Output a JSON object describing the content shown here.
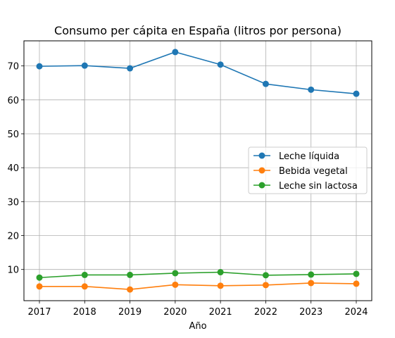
{
  "chart_data": {
    "type": "line",
    "title": "Consumo per cápita en España (litros por persona)",
    "xlabel": "Año",
    "ylabel": "",
    "x": [
      "2017",
      "2018",
      "2019",
      "2020",
      "2021",
      "2022",
      "2023",
      "2024"
    ],
    "ylim": [
      0.8,
      77.4
    ],
    "yticks": [
      10,
      20,
      30,
      40,
      50,
      60,
      70
    ],
    "grid": true,
    "legend_position": "center-right",
    "series": [
      {
        "name": "Leche líquida",
        "color": "#1f77b4",
        "values": [
          69.9,
          70.1,
          69.3,
          74.1,
          70.4,
          64.7,
          63.0,
          61.8
        ]
      },
      {
        "name": "Bebida vegetal",
        "color": "#ff7f0e",
        "values": [
          5.0,
          5.0,
          4.1,
          5.5,
          5.2,
          5.4,
          6.0,
          5.8
        ]
      },
      {
        "name": "Leche sin lactosa",
        "color": "#2ca02c",
        "values": [
          7.6,
          8.4,
          8.4,
          8.9,
          9.2,
          8.3,
          8.5,
          8.7
        ]
      }
    ]
  }
}
